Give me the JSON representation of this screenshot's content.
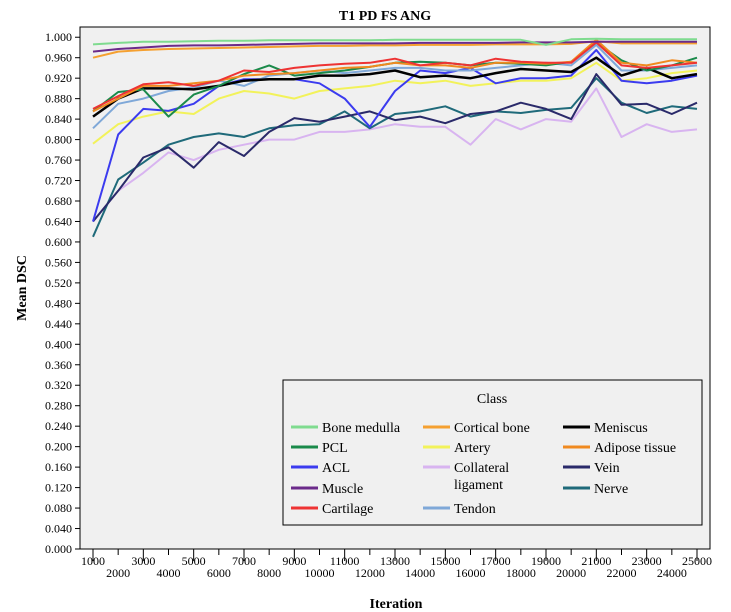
{
  "chart_data": {
    "type": "line",
    "title": "T1 PD FS ANG",
    "xlabel": "Iteration",
    "ylabel": "Mean DSC",
    "x": [
      1000,
      2000,
      3000,
      4000,
      5000,
      6000,
      7000,
      8000,
      9000,
      10000,
      11000,
      12000,
      13000,
      14000,
      15000,
      16000,
      17000,
      18000,
      19000,
      20000,
      21000,
      22000,
      23000,
      24000,
      25000
    ],
    "x_ticks": [
      "1000",
      "2000",
      "3000",
      "4000",
      "5000",
      "6000",
      "7000",
      "8000",
      "9000",
      "10000",
      "11000",
      "12000",
      "13000",
      "14000",
      "15000",
      "16000",
      "17000",
      "18000",
      "19000",
      "20000",
      "21000",
      "22000",
      "23000",
      "24000",
      "25000"
    ],
    "ylim": [
      0,
      1.02
    ],
    "y_ticks": [
      "0.000",
      "0.040",
      "0.080",
      "0.120",
      "0.160",
      "0.200",
      "0.240",
      "0.280",
      "0.320",
      "0.360",
      "0.400",
      "0.440",
      "0.480",
      "0.520",
      "0.560",
      "0.600",
      "0.640",
      "0.680",
      "0.720",
      "0.760",
      "0.800",
      "0.840",
      "0.880",
      "0.920",
      "0.960",
      "1.000"
    ],
    "grid": false,
    "legend": {
      "title": "Class",
      "placement": "bottom-right"
    },
    "series": [
      {
        "name": "Bone medulla",
        "color": "#7fdb8f",
        "values": [
          0.986,
          0.989,
          0.991,
          0.991,
          0.992,
          0.993,
          0.993,
          0.994,
          0.994,
          0.994,
          0.994,
          0.994,
          0.995,
          0.995,
          0.995,
          0.995,
          0.995,
          0.995,
          0.985,
          0.996,
          0.997,
          0.996,
          0.996,
          0.996,
          0.996
        ]
      },
      {
        "name": "PCL",
        "color": "#1a8a4a",
        "values": [
          0.855,
          0.893,
          0.898,
          0.845,
          0.888,
          0.905,
          0.928,
          0.945,
          0.925,
          0.93,
          0.935,
          0.942,
          0.95,
          0.952,
          0.95,
          0.945,
          0.95,
          0.948,
          0.945,
          0.952,
          0.99,
          0.955,
          0.935,
          0.945,
          0.96
        ]
      },
      {
        "name": "ACL",
        "color": "#3b3bef",
        "values": [
          0.64,
          0.81,
          0.86,
          0.856,
          0.87,
          0.905,
          0.918,
          0.918,
          0.918,
          0.91,
          0.88,
          0.825,
          0.895,
          0.935,
          0.93,
          0.94,
          0.91,
          0.92,
          0.92,
          0.925,
          0.975,
          0.915,
          0.91,
          0.915,
          0.925
        ]
      },
      {
        "name": "Muscle",
        "color": "#6b2a8a",
        "values": [
          0.972,
          0.977,
          0.98,
          0.983,
          0.984,
          0.984,
          0.985,
          0.986,
          0.987,
          0.988,
          0.988,
          0.988,
          0.988,
          0.989,
          0.989,
          0.989,
          0.989,
          0.99,
          0.99,
          0.99,
          0.991,
          0.991,
          0.991,
          0.991,
          0.991
        ]
      },
      {
        "name": "Cartilage",
        "color": "#ee3333",
        "values": [
          0.86,
          0.885,
          0.908,
          0.912,
          0.905,
          0.915,
          0.935,
          0.932,
          0.94,
          0.945,
          0.948,
          0.95,
          0.958,
          0.945,
          0.95,
          0.945,
          0.958,
          0.952,
          0.95,
          0.95,
          0.99,
          0.945,
          0.94,
          0.945,
          0.95
        ]
      },
      {
        "name": "Cortical bone",
        "color": "#f5a030",
        "values": [
          0.96,
          0.972,
          0.975,
          0.977,
          0.978,
          0.979,
          0.98,
          0.981,
          0.982,
          0.983,
          0.983,
          0.984,
          0.984,
          0.985,
          0.985,
          0.985,
          0.986,
          0.986,
          0.986,
          0.987,
          0.992,
          0.988,
          0.988,
          0.988,
          0.988
        ]
      },
      {
        "name": "Artery",
        "color": "#f2f25a",
        "values": [
          0.792,
          0.83,
          0.845,
          0.855,
          0.85,
          0.88,
          0.895,
          0.89,
          0.88,
          0.895,
          0.9,
          0.905,
          0.915,
          0.91,
          0.915,
          0.905,
          0.91,
          0.915,
          0.915,
          0.92,
          0.95,
          0.915,
          0.92,
          0.93,
          0.935
        ]
      },
      {
        "name": "Collateral ligament",
        "color": "#d8b4f0",
        "values": [
          0.64,
          0.7,
          0.735,
          0.775,
          0.76,
          0.78,
          0.79,
          0.8,
          0.8,
          0.815,
          0.815,
          0.82,
          0.83,
          0.825,
          0.825,
          0.79,
          0.84,
          0.82,
          0.84,
          0.835,
          0.9,
          0.805,
          0.83,
          0.815,
          0.82
        ]
      },
      {
        "name": "Tendon",
        "color": "#7fa8d8",
        "values": [
          0.822,
          0.87,
          0.88,
          0.895,
          0.902,
          0.915,
          0.905,
          0.925,
          0.93,
          0.935,
          0.93,
          0.935,
          0.94,
          0.94,
          0.935,
          0.935,
          0.94,
          0.945,
          0.95,
          0.945,
          0.985,
          0.935,
          0.935,
          0.94,
          0.945
        ]
      },
      {
        "name": "Meniscus",
        "color": "#000000",
        "values": [
          0.845,
          0.88,
          0.9,
          0.9,
          0.898,
          0.905,
          0.915,
          0.918,
          0.918,
          0.925,
          0.925,
          0.928,
          0.935,
          0.922,
          0.925,
          0.92,
          0.93,
          0.938,
          0.935,
          0.932,
          0.96,
          0.925,
          0.94,
          0.92,
          0.928
        ]
      },
      {
        "name": "Adipose tissue",
        "color": "#f08a20",
        "values": [
          0.855,
          0.88,
          0.905,
          0.905,
          0.91,
          0.915,
          0.925,
          0.928,
          0.93,
          0.935,
          0.94,
          0.942,
          0.95,
          0.945,
          0.945,
          0.94,
          0.95,
          0.95,
          0.948,
          0.952,
          0.995,
          0.95,
          0.945,
          0.955,
          0.95
        ]
      },
      {
        "name": "Vein",
        "color": "#2a2a6a",
        "values": [
          0.64,
          0.7,
          0.765,
          0.785,
          0.745,
          0.795,
          0.768,
          0.815,
          0.842,
          0.835,
          0.845,
          0.855,
          0.838,
          0.845,
          0.832,
          0.85,
          0.855,
          0.872,
          0.86,
          0.84,
          0.928,
          0.868,
          0.87,
          0.85,
          0.872
        ]
      },
      {
        "name": "Nerve",
        "color": "#1f6a7a",
        "values": [
          0.61,
          0.722,
          0.755,
          0.79,
          0.805,
          0.812,
          0.805,
          0.822,
          0.828,
          0.83,
          0.855,
          0.822,
          0.85,
          0.855,
          0.865,
          0.845,
          0.855,
          0.852,
          0.858,
          0.862,
          0.92,
          0.872,
          0.852,
          0.865,
          0.86
        ]
      }
    ]
  }
}
